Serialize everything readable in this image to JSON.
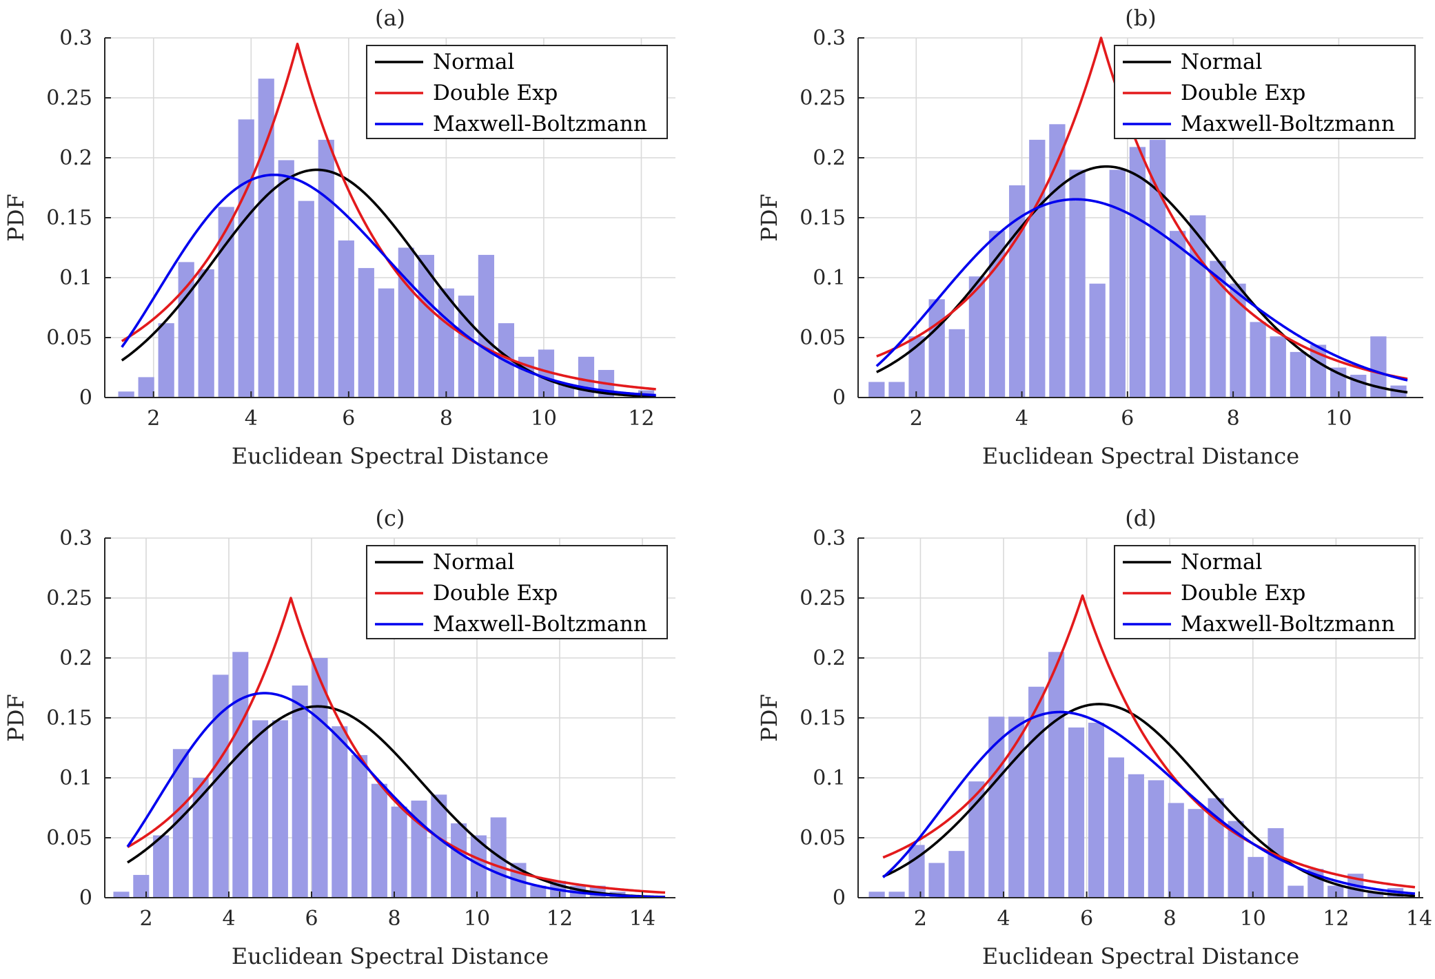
{
  "colors": {
    "bar": "#9b9be6",
    "normal": "#000000",
    "double_exp": "#e31a1c",
    "maxwell": "#0000ee",
    "grid": "#d9d9d9"
  },
  "chart_data": [
    {
      "type": "bar",
      "title": "(a)",
      "xlabel": "Euclidean Spectral Distance",
      "ylabel": "PDF",
      "xlim": [
        1,
        12.7
      ],
      "ylim": [
        0,
        0.3
      ],
      "xticks": [
        "2",
        "4",
        "6",
        "8",
        "10",
        "12"
      ],
      "yticks": [
        "0",
        "0.05",
        "0.1",
        "0.15",
        "0.2",
        "0.25",
        "0.3"
      ],
      "grid": true,
      "legend": [
        "Normal",
        "Double Exp",
        "Maxwell-Boltzmann"
      ],
      "legend_position": "top-right",
      "bin_width": 0.41,
      "bars": {
        "x": [
          1.44,
          1.85,
          2.26,
          2.67,
          3.08,
          3.49,
          3.9,
          4.31,
          4.72,
          5.13,
          5.54,
          5.95,
          6.36,
          6.77,
          7.18,
          7.59,
          8.0,
          8.41,
          8.82,
          9.23,
          9.64,
          10.05,
          10.46,
          10.87,
          11.28,
          11.69,
          12.1
        ],
        "values": [
          0.005,
          0.017,
          0.062,
          0.113,
          0.107,
          0.159,
          0.232,
          0.266,
          0.198,
          0.164,
          0.215,
          0.131,
          0.108,
          0.091,
          0.125,
          0.119,
          0.091,
          0.085,
          0.119,
          0.062,
          0.034,
          0.04,
          0.011,
          0.034,
          0.023,
          0.0,
          0.006
        ]
      },
      "series": [
        {
          "name": "Normal",
          "kind": "normal",
          "mean": 5.35,
          "sd": 2.1,
          "xrange": [
            1.35,
            12.3
          ]
        },
        {
          "name": "Double Exp",
          "kind": "laplace",
          "peak_x": 4.95,
          "peak_y": 0.295,
          "rate": 0.51,
          "xrange": [
            1.35,
            12.3
          ]
        },
        {
          "name": "Maxwell-Boltzmann",
          "kind": "maxwell",
          "a": 3.16,
          "xrange": [
            1.35,
            12.3
          ]
        }
      ]
    },
    {
      "type": "bar",
      "title": "(b)",
      "xlabel": "Euclidean Spectral Distance",
      "ylabel": "PDF",
      "xlim": [
        0.9,
        11.6
      ],
      "ylim": [
        0,
        0.3
      ],
      "xticks": [
        "2",
        "4",
        "6",
        "8",
        "10"
      ],
      "yticks": [
        "0",
        "0.05",
        "0.1",
        "0.15",
        "0.2",
        "0.25",
        "0.3"
      ],
      "grid": true,
      "legend": [
        "Normal",
        "Double Exp",
        "Maxwell-Boltzmann"
      ],
      "legend_position": "top-right",
      "bin_width": 0.38,
      "bars": {
        "x": [
          1.25,
          1.63,
          2.01,
          2.39,
          2.77,
          3.15,
          3.53,
          3.91,
          4.29,
          4.67,
          5.05,
          5.43,
          5.81,
          6.19,
          6.57,
          6.95,
          7.33,
          7.71,
          8.09,
          8.47,
          8.85,
          9.23,
          9.61,
          9.99,
          10.37,
          10.75,
          11.13
        ],
        "values": [
          0.013,
          0.013,
          0.051,
          0.082,
          0.057,
          0.101,
          0.139,
          0.177,
          0.215,
          0.228,
          0.19,
          0.095,
          0.19,
          0.209,
          0.215,
          0.139,
          0.152,
          0.114,
          0.095,
          0.063,
          0.051,
          0.038,
          0.044,
          0.025,
          0.019,
          0.051,
          0.01
        ]
      },
      "series": [
        {
          "name": "Normal",
          "kind": "normal",
          "mean": 5.6,
          "sd": 2.07,
          "xrange": [
            1.25,
            11.3
          ]
        },
        {
          "name": "Double Exp",
          "kind": "laplace",
          "peak_x": 5.5,
          "peak_y": 0.3,
          "rate": 0.51,
          "xrange": [
            1.25,
            11.3
          ]
        },
        {
          "name": "Maxwell-Boltzmann",
          "kind": "maxwell",
          "a": 3.55,
          "xrange": [
            1.25,
            11.3
          ]
        }
      ]
    },
    {
      "type": "bar",
      "title": "(c)",
      "xlabel": "Euclidean Spectral Distance",
      "ylabel": "PDF",
      "xlim": [
        1,
        14.8
      ],
      "ylim": [
        0,
        0.3
      ],
      "xticks": [
        "2",
        "4",
        "6",
        "8",
        "10",
        "12",
        "14"
      ],
      "yticks": [
        "0",
        "0.05",
        "0.1",
        "0.15",
        "0.2",
        "0.25",
        "0.3"
      ],
      "grid": true,
      "legend": [
        "Normal",
        "Double Exp",
        "Maxwell-Boltzmann"
      ],
      "legend_position": "top-right",
      "bin_width": 0.48,
      "bars": {
        "x": [
          1.4,
          1.88,
          2.36,
          2.84,
          3.32,
          3.8,
          4.28,
          4.76,
          5.24,
          5.72,
          6.2,
          6.68,
          7.16,
          7.64,
          8.12,
          8.6,
          9.08,
          9.56,
          10.04,
          10.52,
          11.0,
          11.48,
          11.96,
          12.44,
          12.92,
          13.4
        ],
        "values": [
          0.005,
          0.019,
          0.052,
          0.124,
          0.1,
          0.186,
          0.205,
          0.148,
          0.148,
          0.177,
          0.2,
          0.143,
          0.119,
          0.095,
          0.076,
          0.081,
          0.086,
          0.062,
          0.052,
          0.067,
          0.029,
          0.01,
          0.014,
          0.01,
          0.01,
          0.005
        ]
      },
      "series": [
        {
          "name": "Normal",
          "kind": "normal",
          "mean": 6.15,
          "sd": 2.5,
          "xrange": [
            1.55,
            14.55
          ]
        },
        {
          "name": "Double Exp",
          "kind": "laplace",
          "peak_x": 5.5,
          "peak_y": 0.25,
          "rate": 0.45,
          "xrange": [
            1.55,
            14.55
          ]
        },
        {
          "name": "Maxwell-Boltzmann",
          "kind": "maxwell",
          "a": 3.44,
          "xrange": [
            1.55,
            14.55
          ]
        }
      ]
    },
    {
      "type": "bar",
      "title": "(d)",
      "xlabel": "Euclidean Spectral Distance",
      "ylabel": "PDF",
      "xlim": [
        0.5,
        14.1
      ],
      "ylim": [
        0,
        0.3
      ],
      "xticks": [
        "2",
        "4",
        "6",
        "8",
        "10",
        "12",
        "14"
      ],
      "yticks": [
        "0",
        "0.05",
        "0.1",
        "0.15",
        "0.2",
        "0.25",
        "0.3"
      ],
      "grid": true,
      "legend": [
        "Normal",
        "Double Exp",
        "Maxwell-Boltzmann"
      ],
      "legend_position": "top-right",
      "bin_width": 0.48,
      "bars": {
        "x": [
          0.95,
          1.43,
          1.91,
          2.39,
          2.87,
          3.35,
          3.83,
          4.31,
          4.79,
          5.27,
          5.75,
          6.23,
          6.71,
          7.19,
          7.67,
          8.15,
          8.63,
          9.11,
          9.59,
          10.07,
          10.55,
          11.03,
          11.51,
          11.99,
          12.47,
          12.95,
          13.43
        ],
        "values": [
          0.005,
          0.005,
          0.044,
          0.029,
          0.039,
          0.097,
          0.151,
          0.151,
          0.176,
          0.205,
          0.142,
          0.146,
          0.117,
          0.103,
          0.098,
          0.079,
          0.074,
          0.083,
          0.064,
          0.034,
          0.058,
          0.01,
          0.024,
          0.01,
          0.02,
          0.005,
          0.008
        ]
      },
      "series": [
        {
          "name": "Normal",
          "kind": "normal",
          "mean": 6.3,
          "sd": 2.47,
          "xrange": [
            1.1,
            13.9
          ]
        },
        {
          "name": "Double Exp",
          "kind": "laplace",
          "peak_x": 5.9,
          "peak_y": 0.252,
          "rate": 0.42,
          "xrange": [
            1.1,
            13.9
          ]
        },
        {
          "name": "Maxwell-Boltzmann",
          "kind": "maxwell",
          "a": 3.79,
          "xrange": [
            1.1,
            13.9
          ]
        }
      ]
    }
  ]
}
